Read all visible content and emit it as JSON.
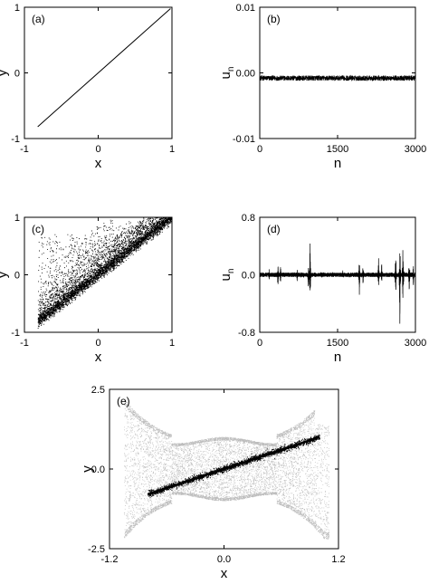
{
  "chart_data": [
    {
      "type": "line",
      "panel_label": "(a)",
      "xlabel": "x",
      "ylabel": "y",
      "xlim": [
        -1,
        1
      ],
      "ylim": [
        -1,
        1
      ],
      "xticks": [
        -1,
        0,
        1
      ],
      "yticks": [
        -1,
        0,
        1
      ],
      "xtick_labels": [
        "-1",
        "0",
        "1"
      ],
      "ytick_labels": [
        "-1",
        "0",
        "1"
      ],
      "grid": false,
      "series": [
        {
          "x": [
            -0.82,
            0.98
          ],
          "y": [
            -0.82,
            0.98
          ],
          "color": "#000000"
        }
      ]
    },
    {
      "type": "line",
      "panel_label": "(b)",
      "xlabel": "n",
      "ylabel": "u",
      "ylabel_subscript": "n",
      "xlim": [
        0,
        3000
      ],
      "ylim": [
        -0.01,
        0.01
      ],
      "xticks": [
        0,
        1500,
        3000
      ],
      "yticks": [
        -0.01,
        0.0,
        0.01
      ],
      "xtick_labels": [
        "0",
        "1500",
        "3000"
      ],
      "ytick_labels": [
        "-0.01",
        "0.00",
        "0.01"
      ],
      "grid": false,
      "series": [
        {
          "description_values": {
            "mean": -0.0008,
            "amplitude": 0.0004
          },
          "color": "#000000"
        }
      ]
    },
    {
      "type": "scatter",
      "panel_label": "(c)",
      "xlabel": "x",
      "ylabel": "y",
      "xlim": [
        -1,
        1
      ],
      "ylim": [
        -1,
        1
      ],
      "xticks": [
        -1,
        0,
        1
      ],
      "yticks": [
        -1,
        0,
        1
      ],
      "xtick_labels": [
        "-1",
        "0",
        "1"
      ],
      "ytick_labels": [
        "-1",
        "0",
        "1"
      ],
      "grid": false,
      "series": [
        {
          "x_range": [
            -0.82,
            1.0
          ],
          "main_band": "y≈x",
          "color": "#000000"
        }
      ]
    },
    {
      "type": "line",
      "panel_label": "(d)",
      "xlabel": "n",
      "ylabel": "u",
      "ylabel_subscript": "n",
      "xlim": [
        0,
        3000
      ],
      "ylim": [
        -0.8,
        0.8
      ],
      "xticks": [
        0,
        1500,
        3000
      ],
      "yticks": [
        -0.8,
        0.0,
        0.8
      ],
      "xtick_labels": [
        "0",
        "1500",
        "3000"
      ],
      "ytick_labels": [
        "-0.8",
        "0.0",
        "0.8"
      ],
      "grid": false,
      "series": [
        {
          "baseline_amplitude": 0.03,
          "bursts": [
            {
              "n": 180,
              "amp": 0.08
            },
            {
              "n": 350,
              "amp": 0.2
            },
            {
              "n": 400,
              "amp": 0.15
            },
            {
              "n": 720,
              "amp": 0.1
            },
            {
              "n": 940,
              "amp": 0.3
            },
            {
              "n": 970,
              "amp": 0.5
            },
            {
              "n": 1200,
              "amp": 0.06
            },
            {
              "n": 1600,
              "amp": 0.06
            },
            {
              "n": 1920,
              "amp": 0.3
            },
            {
              "n": 1990,
              "amp": 0.15
            },
            {
              "n": 2290,
              "amp": 0.25
            },
            {
              "n": 2350,
              "amp": 0.2
            },
            {
              "n": 2620,
              "amp": 0.42
            },
            {
              "n": 2700,
              "amp": 0.7
            },
            {
              "n": 2760,
              "amp": 0.55
            },
            {
              "n": 2880,
              "amp": 0.3
            },
            {
              "n": 2960,
              "amp": 0.2
            }
          ],
          "color": "#000000"
        }
      ]
    },
    {
      "type": "scatter",
      "panel_label": "(e)",
      "xlabel": "x",
      "ylabel": "y",
      "xlim": [
        -1.2,
        1.2
      ],
      "ylim": [
        -2.5,
        2.5
      ],
      "xticks": [
        -1.2,
        0.0,
        1.2
      ],
      "yticks": [
        -2.5,
        0.0,
        2.5
      ],
      "xtick_labels": [
        "-1.2",
        "0.0",
        "1.2"
      ],
      "ytick_labels": [
        "-2.5",
        "0.0",
        "2.5"
      ],
      "grid": false,
      "series": [
        {
          "x_range": [
            -1.05,
            1.1
          ],
          "role": "attractor background",
          "color": "#bdbdbd"
        },
        {
          "x": [
            -0.8,
            1.0
          ],
          "y": [
            -0.8,
            1.0
          ],
          "role": "synchronization line",
          "color": "#000000"
        }
      ]
    }
  ]
}
